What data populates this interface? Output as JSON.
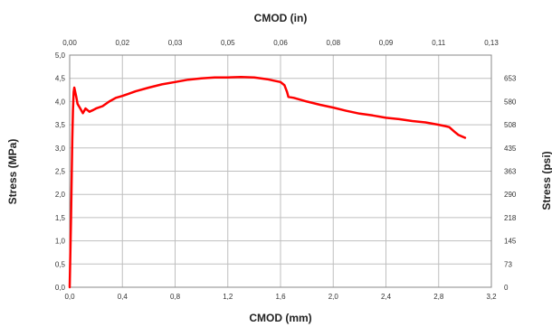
{
  "chart_data": {
    "type": "line",
    "title": "",
    "xlabel": "CMOD (mm)",
    "x2label": "CMOD (in)",
    "ylabel": "Stress (MPa)",
    "y2label": "Stress (psi)",
    "xlim": [
      0,
      3.2
    ],
    "ylim": [
      0,
      5.0
    ],
    "x2lim": [
      0,
      0.13
    ],
    "y2lim": [
      0,
      725.2
    ],
    "grid": true,
    "legend": "none",
    "line_color": "#ff0000",
    "x_ticks": [
      "0,0",
      "0,4",
      "0,8",
      "1,2",
      "1,6",
      "2,0",
      "2,4",
      "2,8",
      "3,2"
    ],
    "x_tick_values": [
      0,
      0.4,
      0.8,
      1.2,
      1.6,
      2.0,
      2.4,
      2.8,
      3.2
    ],
    "y_ticks": [
      "0,0",
      "0,5",
      "1,0",
      "1,5",
      "2,0",
      "2,5",
      "3,0",
      "3,5",
      "4,0",
      "4,5",
      "5,0"
    ],
    "y_tick_values": [
      0,
      0.5,
      1.0,
      1.5,
      2.0,
      2.5,
      3.0,
      3.5,
      4.0,
      4.5,
      5.0
    ],
    "x2_ticks": [
      "0,00",
      "0,02",
      "0,03",
      "0,05",
      "0,06",
      "0,08",
      "0,09",
      "0,11",
      "0,13"
    ],
    "y2_ticks": [
      "0",
      "73",
      "145",
      "218",
      "290",
      "363",
      "435",
      "508",
      "580",
      "653"
    ],
    "y2_tick_values_mpa": [
      0,
      0.5,
      1.0,
      1.5,
      2.0,
      2.5,
      3.0,
      3.5,
      4.0,
      4.5
    ],
    "series": [
      {
        "x": [
          0.0,
          0.01,
          0.02,
          0.025,
          0.03,
          0.035,
          0.05,
          0.06,
          0.08,
          0.1,
          0.12,
          0.15,
          0.18,
          0.2,
          0.25,
          0.3,
          0.35,
          0.4,
          0.45,
          0.5,
          0.6,
          0.7,
          0.8,
          0.9,
          1.0,
          1.1,
          1.2,
          1.3,
          1.4,
          1.5,
          1.55,
          1.6,
          1.63,
          1.65,
          1.66,
          1.7,
          1.8,
          1.9,
          2.0,
          2.1,
          2.2,
          2.3,
          2.4,
          2.5,
          2.6,
          2.7,
          2.8,
          2.85,
          2.88,
          2.92,
          2.95,
          3.0
        ],
        "y": [
          0.0,
          1.5,
          3.2,
          3.8,
          4.2,
          4.3,
          4.1,
          3.95,
          3.85,
          3.75,
          3.85,
          3.78,
          3.82,
          3.85,
          3.9,
          4.0,
          4.08,
          4.12,
          4.17,
          4.22,
          4.3,
          4.37,
          4.42,
          4.47,
          4.5,
          4.52,
          4.52,
          4.53,
          4.52,
          4.48,
          4.45,
          4.42,
          4.35,
          4.2,
          4.1,
          4.08,
          4.0,
          3.93,
          3.87,
          3.8,
          3.74,
          3.7,
          3.65,
          3.62,
          3.58,
          3.55,
          3.5,
          3.47,
          3.45,
          3.35,
          3.28,
          3.22
        ]
      }
    ]
  }
}
